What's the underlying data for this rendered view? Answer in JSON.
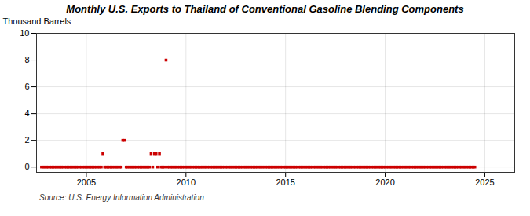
{
  "chart_data": {
    "type": "scatter",
    "title": "Monthly U.S. Exports to Thailand of Conventional Gasoline Blending Components",
    "ylabel": "Thousand Barrels",
    "annotations": [
      "Source: U.S. Energy Information Administration"
    ],
    "color": "#cc0000",
    "marker": "square",
    "grid": true,
    "xlim": [
      2002.5,
      2026.5
    ],
    "ylim": [
      -0.4,
      10
    ],
    "xticks": [
      2005,
      2010,
      2015,
      2020,
      2025
    ],
    "yticks": [
      0,
      2,
      4,
      6,
      8,
      10
    ],
    "x": [
      2002.75,
      2002.83,
      2002.92,
      2003.0,
      2003.08,
      2003.17,
      2003.25,
      2003.33,
      2003.42,
      2003.5,
      2003.58,
      2003.67,
      2003.75,
      2003.83,
      2003.92,
      2004.0,
      2004.08,
      2004.17,
      2004.25,
      2004.33,
      2004.42,
      2004.5,
      2004.58,
      2004.67,
      2004.75,
      2004.83,
      2004.92,
      2005.0,
      2005.08,
      2005.17,
      2005.25,
      2005.33,
      2005.42,
      2005.5,
      2005.58,
      2005.67,
      2005.75,
      2005.83,
      2005.92,
      2006.0,
      2006.08,
      2006.17,
      2006.25,
      2006.33,
      2006.42,
      2006.5,
      2006.58,
      2006.67,
      2006.75,
      2006.83,
      2006.92,
      2007.0,
      2007.08,
      2007.17,
      2007.25,
      2007.33,
      2007.42,
      2007.5,
      2007.58,
      2007.67,
      2007.75,
      2007.83,
      2007.92,
      2008.0,
      2008.08,
      2008.17,
      2008.25,
      2008.33,
      2008.42,
      2008.5,
      2008.58,
      2008.67,
      2008.75,
      2008.83,
      2008.92,
      2009.0,
      2009.08,
      2009.17,
      2009.25,
      2009.33,
      2009.42,
      2009.5,
      2009.58,
      2009.67,
      2009.75,
      2009.83,
      2009.92,
      2010.0,
      2010.08,
      2010.17,
      2010.25,
      2010.33,
      2010.42,
      2010.5,
      2010.58,
      2010.67,
      2010.75,
      2010.83,
      2010.92,
      2011.0,
      2011.08,
      2011.17,
      2011.25,
      2011.33,
      2011.42,
      2011.5,
      2011.58,
      2011.67,
      2011.75,
      2011.83,
      2011.92,
      2012.0,
      2012.08,
      2012.17,
      2012.25,
      2012.33,
      2012.42,
      2012.5,
      2012.58,
      2012.67,
      2012.75,
      2012.83,
      2012.92,
      2013.0,
      2013.08,
      2013.17,
      2013.25,
      2013.33,
      2013.42,
      2013.5,
      2013.58,
      2013.67,
      2013.75,
      2013.83,
      2013.92,
      2014.0,
      2014.08,
      2014.17,
      2014.25,
      2014.33,
      2014.42,
      2014.5,
      2014.58,
      2014.67,
      2014.75,
      2014.83,
      2014.92,
      2015.0,
      2015.08,
      2015.17,
      2015.25,
      2015.33,
      2015.42,
      2015.5,
      2015.58,
      2015.67,
      2015.75,
      2015.83,
      2015.92,
      2016.0,
      2016.08,
      2016.17,
      2016.25,
      2016.33,
      2016.42,
      2016.5,
      2016.58,
      2016.67,
      2016.75,
      2016.83,
      2016.92,
      2017.0,
      2017.08,
      2017.17,
      2017.25,
      2017.33,
      2017.42,
      2017.5,
      2017.58,
      2017.67,
      2017.75,
      2017.83,
      2017.92,
      2018.0,
      2018.08,
      2018.17,
      2018.25,
      2018.33,
      2018.42,
      2018.5,
      2018.58,
      2018.67,
      2018.75,
      2018.83,
      2018.92,
      2019.0,
      2019.08,
      2019.17,
      2019.25,
      2019.33,
      2019.42,
      2019.5,
      2019.58,
      2019.67,
      2019.75,
      2019.83,
      2019.92,
      2020.0,
      2020.08,
      2020.17,
      2020.25,
      2020.33,
      2020.42,
      2020.5,
      2020.58,
      2020.67,
      2020.75,
      2020.83,
      2020.92,
      2021.0,
      2021.08,
      2021.17,
      2021.25,
      2021.33,
      2021.42,
      2021.5,
      2021.58,
      2021.67,
      2021.75,
      2021.83,
      2021.92,
      2022.0,
      2022.08,
      2022.17,
      2022.25,
      2022.33,
      2022.42,
      2022.5,
      2022.58,
      2022.67,
      2022.75,
      2022.83,
      2022.92,
      2023.0,
      2023.08,
      2023.17,
      2023.25,
      2023.33,
      2023.42,
      2023.5,
      2023.58,
      2023.67,
      2023.75,
      2023.83,
      2023.92,
      2024.0,
      2024.08,
      2024.17,
      2024.25,
      2024.33,
      2024.42,
      2024.5
    ],
    "values": [
      0,
      0,
      0,
      0,
      0,
      0,
      0,
      0,
      0,
      0,
      0,
      0,
      0,
      0,
      0,
      0,
      0,
      0,
      0,
      0,
      0,
      0,
      0,
      0,
      0,
      0,
      0,
      0,
      0,
      0,
      0,
      0,
      0,
      0,
      0,
      0,
      0,
      1,
      0,
      0,
      0,
      0,
      0,
      0,
      0,
      0,
      0,
      0,
      0,
      2,
      2,
      0,
      0,
      0,
      0,
      0,
      0,
      0,
      0,
      0,
      0,
      0,
      0,
      0,
      0,
      0,
      1,
      0,
      1,
      1,
      0,
      1,
      0,
      0,
      0,
      8,
      0,
      0,
      0,
      0,
      0,
      0,
      0,
      0,
      0,
      0,
      0,
      0,
      0,
      0,
      0,
      0,
      0,
      0,
      0,
      0,
      0,
      0,
      0,
      0,
      0,
      0,
      0,
      0,
      0,
      0,
      0,
      0,
      0,
      0,
      0,
      0,
      0,
      0,
      0,
      0,
      0,
      0,
      0,
      0,
      0,
      0,
      0,
      0,
      0,
      0,
      0,
      0,
      0,
      0,
      0,
      0,
      0,
      0,
      0,
      0,
      0,
      0,
      0,
      0,
      0,
      0,
      0,
      0,
      0,
      0,
      0,
      0,
      0,
      0,
      0,
      0,
      0,
      0,
      0,
      0,
      0,
      0,
      0,
      0,
      0,
      0,
      0,
      0,
      0,
      0,
      0,
      0,
      0,
      0,
      0,
      0,
      0,
      0,
      0,
      0,
      0,
      0,
      0,
      0,
      0,
      0,
      0,
      0,
      0,
      0,
      0,
      0,
      0,
      0,
      0,
      0,
      0,
      0,
      0,
      0,
      0,
      0,
      0,
      0,
      0,
      0,
      0,
      0,
      0,
      0,
      0,
      0,
      0,
      0,
      0,
      0,
      0,
      0,
      0,
      0,
      0,
      0,
      0,
      0,
      0,
      0,
      0,
      0,
      0,
      0,
      0,
      0,
      0,
      0,
      0,
      0,
      0,
      0,
      0,
      0,
      0,
      0,
      0,
      0,
      0,
      0,
      0,
      0,
      0,
      0,
      0,
      0,
      0,
      0,
      0,
      0,
      0,
      0,
      0,
      0,
      0,
      0,
      0,
      0,
      0,
      0
    ]
  }
}
